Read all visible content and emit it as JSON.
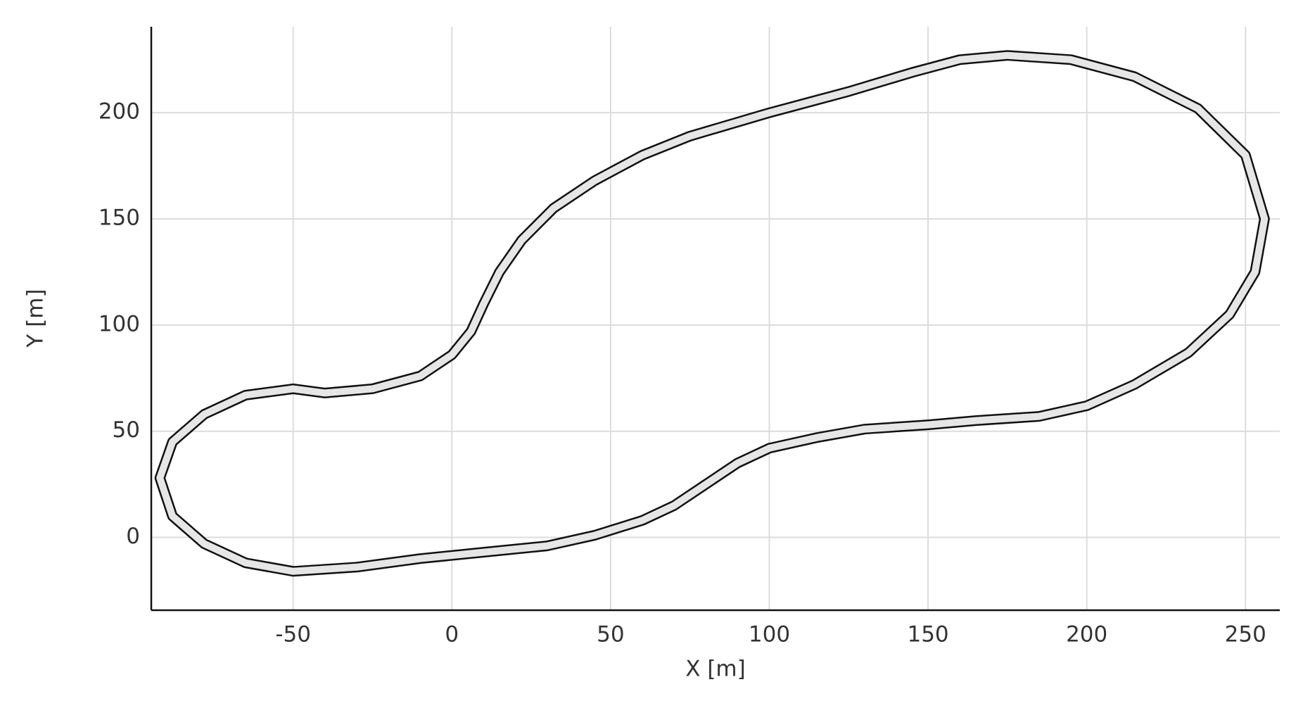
{
  "chart_data": {
    "type": "line",
    "xlabel": "X [m]",
    "ylabel": "Y [m]",
    "xlim": [
      -94.7,
      260.8
    ],
    "ylim": [
      -34.3,
      240.5
    ],
    "xticks": [
      -50,
      0,
      50,
      100,
      150,
      200,
      250
    ],
    "yticks": [
      0,
      50,
      100,
      150,
      200
    ],
    "grid": true,
    "series": [
      {
        "color": "#e6e6e6",
        "x": [
          -50,
          -40,
          -25,
          -10,
          0,
          6,
          10,
          15,
          22,
          32,
          45,
          60,
          75,
          100,
          125,
          145,
          160,
          175,
          195,
          215,
          235,
          250,
          256,
          253,
          245,
          232,
          215,
          200,
          185,
          165,
          150,
          130,
          115,
          100,
          90,
          80,
          70,
          60,
          45,
          30,
          10,
          -10,
          -30,
          -50,
          -65,
          -78,
          -88,
          -92,
          -88,
          -78,
          -65,
          -50
        ],
        "values": [
          70,
          68,
          70,
          76,
          86,
          97,
          110,
          125,
          140,
          155,
          168,
          180,
          189,
          200,
          210,
          219,
          225,
          227,
          225,
          217,
          202,
          180,
          150,
          125,
          105,
          87,
          72,
          62,
          57,
          55,
          53,
          51,
          47,
          42,
          35,
          25,
          15,
          8,
          1,
          -4,
          -7,
          -10,
          -14,
          -16,
          -12,
          -3,
          10,
          28,
          45,
          58,
          67,
          70
        ]
      }
    ]
  }
}
